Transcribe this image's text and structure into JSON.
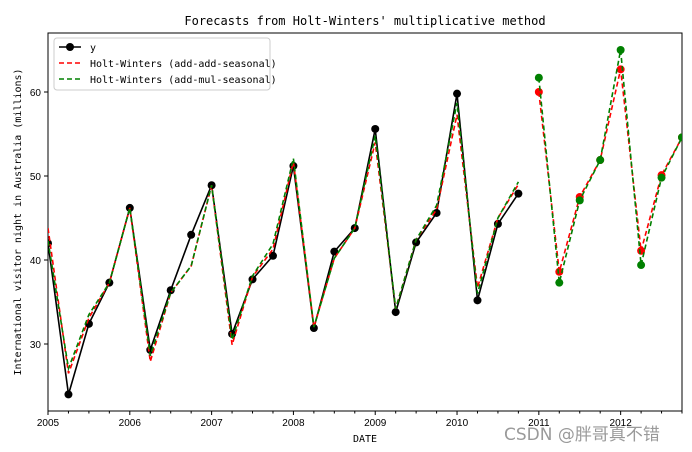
{
  "chart_data": {
    "type": "line",
    "title": "Forecasts from Holt-Winters' multiplicative method",
    "xlabel": "DATE",
    "ylabel": "International visitor night in Australia (millions)",
    "xlim": [
      2005.0,
      2012.75
    ],
    "ylim": [
      21.9,
      66.8
    ],
    "x_ticks": [
      "2005",
      "2006",
      "2007",
      "2008",
      "2009",
      "2010",
      "2011",
      "2012"
    ],
    "y_ticks": [
      30,
      40,
      50,
      60
    ],
    "grid": false,
    "legend_position": "upper left",
    "series": [
      {
        "name": "y",
        "color": "#000000",
        "style": "solid-marker",
        "x": [
          2005.0,
          2005.25,
          2005.5,
          2005.75,
          2006.0,
          2006.25,
          2006.5,
          2006.75,
          2007.0,
          2007.25,
          2007.5,
          2007.75,
          2008.0,
          2008.25,
          2008.5,
          2008.75,
          2009.0,
          2009.25,
          2009.5,
          2009.75,
          2010.0,
          2010.25,
          2010.5,
          2010.75
        ],
        "values": [
          42.0,
          24.0,
          32.4,
          37.3,
          46.2,
          29.3,
          36.4,
          43.0,
          48.9,
          31.2,
          37.7,
          40.5,
          51.2,
          31.9,
          41.0,
          43.8,
          55.6,
          33.8,
          42.1,
          45.6,
          59.8,
          35.2,
          44.3,
          47.9
        ]
      },
      {
        "name": "Holt-Winters (add-add-seasonal) fitted",
        "color": "#ff0000",
        "style": "dashed",
        "x": [
          2005.0,
          2005.25,
          2005.5,
          2005.75,
          2006.0,
          2006.25,
          2006.5,
          2006.75,
          2007.0,
          2007.25,
          2007.5,
          2007.75,
          2008.0,
          2008.25,
          2008.5,
          2008.75,
          2009.0,
          2009.25,
          2009.5,
          2009.75,
          2010.0,
          2010.25,
          2010.5,
          2010.75
        ],
        "values": [
          43.8,
          26.5,
          33.1,
          37.3,
          46.2,
          27.9,
          36.1,
          39.3,
          48.9,
          29.9,
          38.0,
          41.3,
          51.7,
          32.0,
          40.2,
          43.8,
          54.0,
          34.2,
          42.4,
          46.0,
          57.3,
          36.7,
          45.0,
          49.0
        ]
      },
      {
        "name": "Holt-Winters (add-mul-seasonal) fitted",
        "color": "#008000",
        "style": "dashed",
        "x": [
          2005.0,
          2005.25,
          2005.5,
          2005.75,
          2006.0,
          2006.25,
          2006.5,
          2006.75,
          2007.0,
          2007.25,
          2007.5,
          2007.75,
          2008.0,
          2008.25,
          2008.5,
          2008.75,
          2009.0,
          2009.25,
          2009.5,
          2009.75,
          2010.0,
          2010.25,
          2010.5,
          2010.75
        ],
        "values": [
          42.3,
          27.1,
          33.5,
          37.3,
          46.2,
          28.6,
          36.1,
          39.3,
          48.9,
          30.5,
          38.1,
          41.9,
          52.1,
          32.0,
          40.2,
          43.8,
          54.8,
          34.2,
          42.4,
          46.5,
          58.7,
          36.0,
          45.0,
          49.3
        ]
      },
      {
        "name": "Holt-Winters (add-add-seasonal)",
        "color": "#ff0000",
        "style": "dashed-marker",
        "x": [
          2011.0,
          2011.25,
          2011.5,
          2011.75,
          2012.0,
          2012.25,
          2012.5,
          2012.75
        ],
        "values": [
          60.0,
          38.6,
          47.5,
          51.9,
          62.7,
          41.1,
          50.1,
          54.6
        ]
      },
      {
        "name": "Holt-Winters (add-mul-seasonal)",
        "color": "#008000",
        "style": "dashed-marker",
        "x": [
          2011.0,
          2011.25,
          2011.5,
          2011.75,
          2012.0,
          2012.25,
          2012.5,
          2012.75
        ],
        "values": [
          61.7,
          37.3,
          47.1,
          51.9,
          65.0,
          39.4,
          49.8,
          54.6
        ]
      }
    ],
    "legend": [
      {
        "label": "y",
        "color": "#000000",
        "style": "solid-marker"
      },
      {
        "label": "Holt-Winters (add-add-seasonal)",
        "color": "#ff0000",
        "style": "dashed"
      },
      {
        "label": "Holt-Winters (add-mul-seasonal)",
        "color": "#008000",
        "style": "dashed"
      }
    ]
  },
  "watermark": "CSDN @胖哥真不错"
}
